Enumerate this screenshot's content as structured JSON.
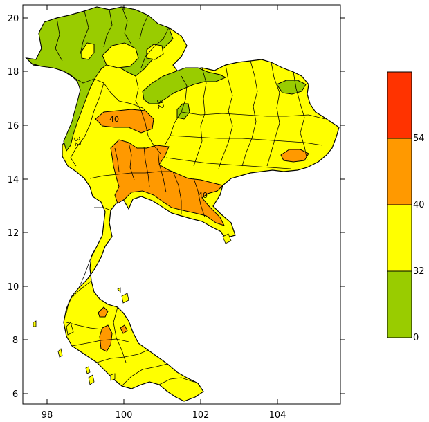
{
  "map": {
    "x_ticks": [
      {
        "lon": 98,
        "label": "98"
      },
      {
        "lon": 100,
        "label": "100"
      },
      {
        "lon": 102,
        "label": "102"
      },
      {
        "lon": 104,
        "label": "104"
      }
    ],
    "y_ticks": [
      {
        "lat": 6,
        "label": "6"
      },
      {
        "lat": 8,
        "label": "8"
      },
      {
        "lat": 10,
        "label": "10"
      },
      {
        "lat": 12,
        "label": "12"
      },
      {
        "lat": 14,
        "label": "14"
      },
      {
        "lat": 16,
        "label": "16"
      },
      {
        "lat": 18,
        "label": "18"
      },
      {
        "lat": 20,
        "label": "20"
      }
    ],
    "contour_labels": [
      {
        "text": "40"
      },
      {
        "text": "32"
      },
      {
        "text": "40"
      },
      {
        "text": "32"
      }
    ],
    "colors": {
      "band_0_32": "#99cc00",
      "band_32_40": "#ffff00",
      "band_40_54": "#ff9900",
      "band_54_plus": "#ff3300"
    }
  },
  "colorbar": {
    "labels": [
      "54",
      "40",
      "32",
      "0"
    ],
    "bands": [
      {
        "color": "#ff3300",
        "range": "54+"
      },
      {
        "color": "#ff9900",
        "range": "40-54"
      },
      {
        "color": "#ffff00",
        "range": "32-40"
      },
      {
        "color": "#99cc00",
        "range": "0-32"
      }
    ]
  }
}
